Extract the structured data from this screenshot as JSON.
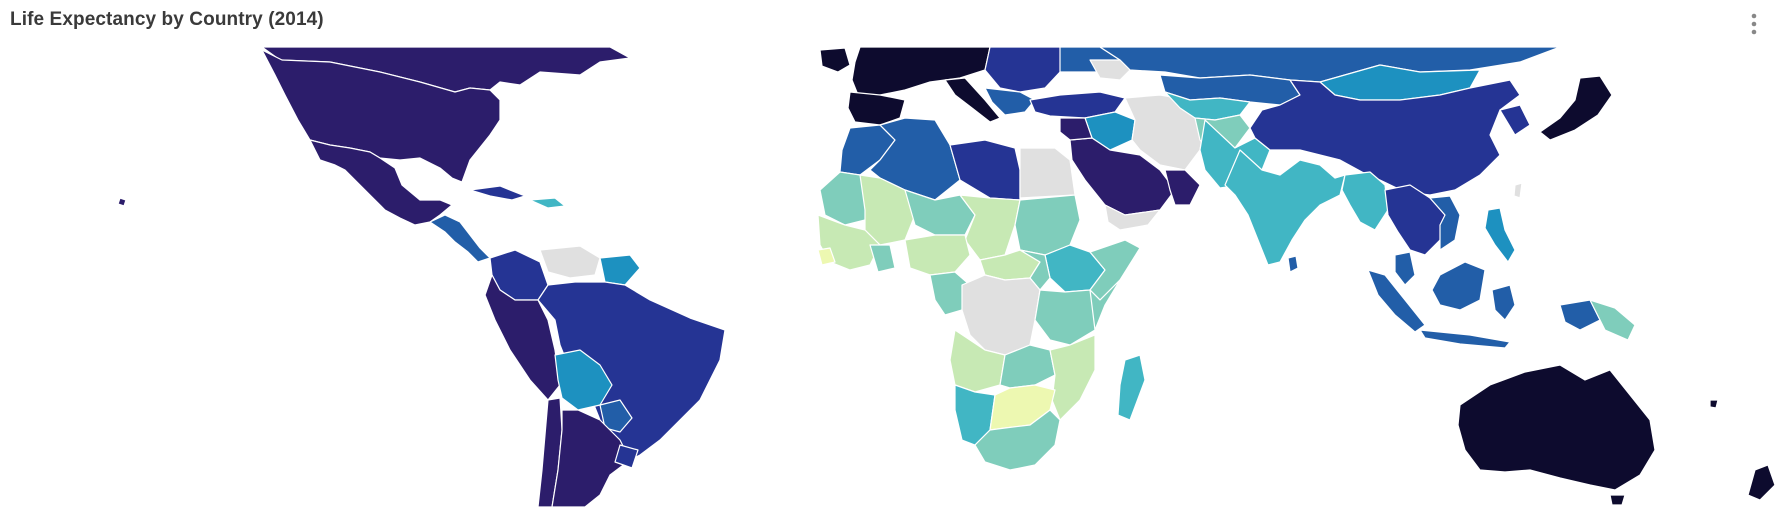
{
  "panel": {
    "title": "Life Expectancy by Country (2014)",
    "menu_icon": "more-vertical-icon"
  },
  "map": {
    "projection": "mercator",
    "metric": "life expectancy",
    "year": "2014",
    "color_scale": [
      "#edf8b1",
      "#c7e9b4",
      "#7fcdbb",
      "#41b6c4",
      "#1d91c0",
      "#225ea8",
      "#253494",
      "#2c1d6b",
      "#0d0b2e"
    ],
    "no_data_color": "#e0e0e0",
    "legend_visible": false
  }
}
